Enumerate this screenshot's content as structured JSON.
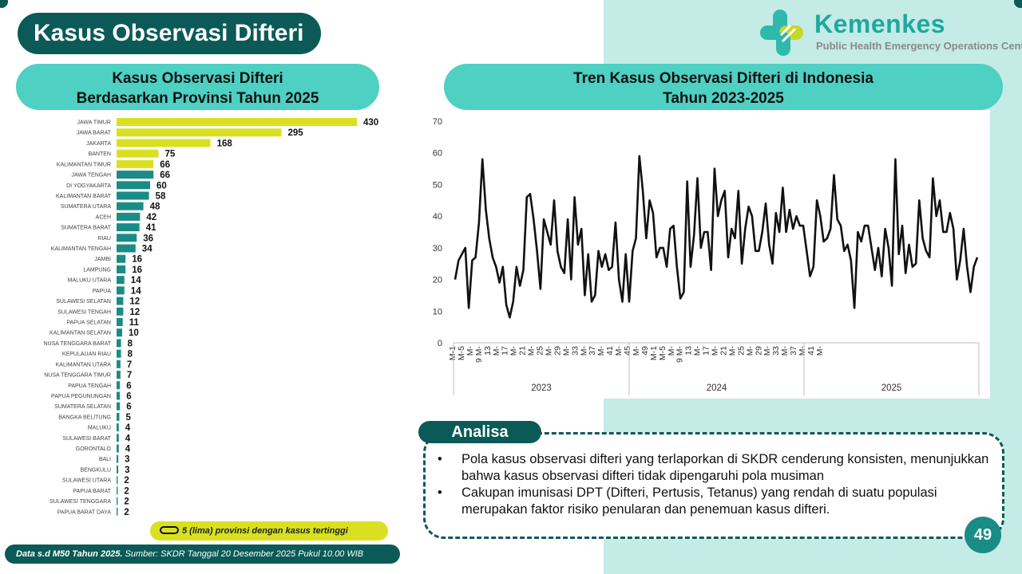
{
  "page_title": "Kasus Observasi Difteri",
  "logo": {
    "name": "Kemenkes",
    "subtitle": "Public Health Emergency Operations Center"
  },
  "colors": {
    "dark_teal": "#0b5a57",
    "teal": "#1a8c86",
    "header_teal": "#4ed0c3",
    "light_teal": "#c4ebe6",
    "highlight": "#d9e021"
  },
  "page_number": "49",
  "legend_text": "5 (lima) provinsi dengan kasus tertinggi",
  "footer": {
    "bold": "Data s.d M50 Tahun 2025.",
    "rest": " Sumber: SKDR Tanggal 20 Desember 2025 Pukul 10.00 WIB"
  },
  "analysis": {
    "title": "Analisa",
    "bullets": [
      "Pola kasus observasi difteri yang terlaporkan di SKDR cenderung konsisten, menunjukkan bahwa kasus observasi difteri tidak dipengaruhi pola musiman",
      "Cakupan imunisasi DPT (Difteri, Pertusis, Tetanus) yang rendah di suatu populasi merupakan faktor risiko penularan dan penemuan kasus difteri."
    ]
  },
  "chart_data": [
    {
      "type": "bar",
      "orientation": "horizontal",
      "title": "Kasus Observasi Difteri Berdasarkan Provinsi Tahun 2025",
      "title_lines": [
        "Kasus Observasi Difteri",
        "Berdasarkan Provinsi Tahun 2025"
      ],
      "categories": [
        "JAWA TIMUR",
        "JAWA BARAT",
        "JAKARTA",
        "BANTEN",
        "KALIMANTAN TIMUR",
        "JAWA TENGAH",
        "DI YOGYAKARTA",
        "KALIMANTAN BARAT",
        "SUMATERA UTARA",
        "ACEH",
        "SUMATERA BARAT",
        "RIAU",
        "KALIMANTAN TENGAH",
        "JAMBI",
        "LAMPUNG",
        "MALUKU UTARA",
        "PAPUA",
        "SULAWESI SELATAN",
        "SULAWESI TENGAH",
        "PAPUA SELATAN",
        "KALIMANTAN SELATAN",
        "NUSA TENGGARA BARAT",
        "KEPULAUAN RIAU",
        "KALIMANTAN UTARA",
        "NUSA TENGGARA TIMUR",
        "PAPUA TENGAH",
        "PAPUA PEGUNUNGAN",
        "SUMATERA SELATAN",
        "BANGKA BELITUNG",
        "MALUKU",
        "SULAWESI BARAT",
        "GORONTALO",
        "BALI",
        "BENGKULU",
        "SULAWESI UTARA",
        "PAPUA BARAT",
        "SULAWESI TENGGARA",
        "PAPUA BARAT DAYA"
      ],
      "values": [
        430,
        295,
        168,
        75,
        66,
        66,
        60,
        58,
        48,
        42,
        41,
        36,
        34,
        16,
        16,
        14,
        14,
        12,
        12,
        11,
        10,
        8,
        8,
        7,
        7,
        6,
        6,
        6,
        5,
        4,
        4,
        4,
        3,
        3,
        2,
        2,
        2,
        2
      ],
      "highlight_count": 5,
      "colors": {
        "highlight": "#d9e021",
        "default": "#1a8c86"
      }
    },
    {
      "type": "line",
      "title": "Tren Kasus Observasi Difteri di Indonesia Tahun 2023-2025",
      "title_lines": [
        "Tren Kasus Observasi Difteri di Indonesia",
        "Tahun 2023-2025"
      ],
      "ylim": [
        0,
        70
      ],
      "yticks": [
        0,
        10,
        20,
        30,
        40,
        50,
        60,
        70
      ],
      "groups": [
        "2023",
        "2024",
        "2025"
      ],
      "tick_labels": [
        "M-1",
        "M-5",
        "M-",
        "9 M-",
        "13",
        "M-",
        "17",
        "M-",
        "21",
        "M-",
        "25",
        "M-",
        "29",
        "M-",
        "33",
        "M-",
        "37",
        "M-",
        "41",
        "M-",
        "45",
        "M-",
        "49",
        "M-1",
        "M-5",
        "M-",
        "9 M-",
        "13",
        "M-",
        "17",
        "M-",
        "21",
        "M-",
        "25",
        "M-",
        "29",
        "M-",
        "33",
        "M-",
        "37",
        "M-",
        "41",
        "M-"
      ],
      "series": [
        {
          "values": [
            20,
            26,
            28,
            30,
            11,
            26,
            27,
            38,
            58,
            42,
            33,
            27,
            24,
            19,
            24,
            12,
            8,
            13,
            24,
            18,
            23,
            46,
            47,
            39,
            29,
            17,
            39,
            35,
            31,
            45,
            29,
            24,
            22,
            39,
            20,
            46,
            31,
            36,
            15,
            28,
            13,
            15,
            29,
            24,
            28,
            23,
            24,
            38,
            20,
            13,
            28,
            13,
            29,
            33,
            59,
            48,
            33,
            45,
            41,
            27,
            30,
            30,
            24,
            36,
            37,
            24,
            14,
            16,
            51,
            24,
            34,
            52,
            30,
            35,
            35,
            23,
            55,
            40,
            45,
            48,
            27,
            36,
            33,
            48,
            25,
            36,
            43,
            40,
            29,
            29,
            35,
            44,
            31,
            25,
            41,
            35,
            49,
            35,
            42,
            36,
            40,
            37,
            37,
            29,
            21,
            24,
            45,
            40,
            32,
            33,
            36,
            53,
            39,
            37,
            29,
            31,
            26,
            11,
            35,
            32,
            37,
            37,
            30,
            23,
            30,
            21,
            36,
            30,
            18,
            58,
            28,
            37,
            22,
            31,
            24,
            25,
            45,
            33,
            29,
            27,
            52,
            40,
            45,
            35,
            35,
            41,
            36,
            20,
            26,
            36,
            24,
            16,
            24,
            27
          ]
        }
      ]
    }
  ]
}
